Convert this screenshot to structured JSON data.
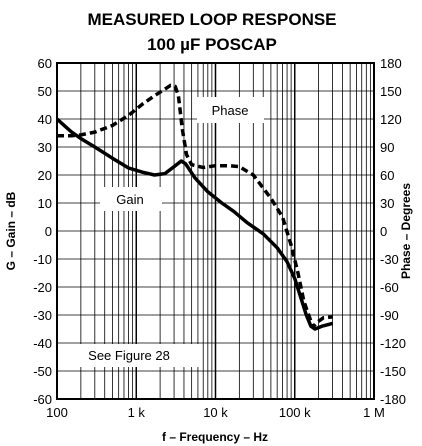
{
  "chart_data": {
    "type": "line",
    "title": "MEASURED LOOP RESPONSE",
    "subtitle": "100 µF POSCAP",
    "xlabel": "f – Frequency – Hz",
    "ylabel_left": "G – Gain – dB",
    "ylabel_right": "Phase – Degrees",
    "x_scale": "log",
    "xlim": [
      100,
      1000000
    ],
    "ylim_left": [
      -60,
      60
    ],
    "ylim_right": [
      -180,
      180
    ],
    "grid": true,
    "x_ticks": [
      {
        "value": 100,
        "label": "100"
      },
      {
        "value": 1000,
        "label": "1 k"
      },
      {
        "value": 10000,
        "label": "10 k"
      },
      {
        "value": 100000,
        "label": "100 k"
      },
      {
        "value": 1000000,
        "label": "1 M"
      }
    ],
    "y_ticks_left": [
      60,
      50,
      40,
      30,
      20,
      10,
      0,
      -10,
      -20,
      -30,
      -40,
      -50,
      -60
    ],
    "y_ticks_right": [
      180,
      150,
      120,
      90,
      60,
      30,
      0,
      -30,
      -60,
      -90,
      -120,
      -150,
      -180
    ],
    "series": [
      {
        "name": "Gain",
        "axis": "left",
        "style": "solid",
        "points": [
          [
            100,
            40
          ],
          [
            150,
            35.5
          ],
          [
            200,
            33
          ],
          [
            300,
            30
          ],
          [
            500,
            26
          ],
          [
            800,
            22.5
          ],
          [
            1200,
            21
          ],
          [
            1700,
            20
          ],
          [
            2300,
            20.5
          ],
          [
            3000,
            23
          ],
          [
            3700,
            25
          ],
          [
            4200,
            24
          ],
          [
            5500,
            19
          ],
          [
            8000,
            14
          ],
          [
            12000,
            10
          ],
          [
            17000,
            7
          ],
          [
            25000,
            3
          ],
          [
            40000,
            -1
          ],
          [
            60000,
            -6
          ],
          [
            80000,
            -11
          ],
          [
            100000,
            -17
          ],
          [
            120000,
            -24
          ],
          [
            140000,
            -30
          ],
          [
            160000,
            -34
          ],
          [
            180000,
            -35
          ],
          [
            220000,
            -34
          ],
          [
            300000,
            -33
          ]
        ]
      },
      {
        "name": "Phase",
        "axis": "right",
        "style": "dashed",
        "points": [
          [
            100,
            102
          ],
          [
            150,
            102
          ],
          [
            200,
            103
          ],
          [
            300,
            106
          ],
          [
            500,
            113
          ],
          [
            800,
            124
          ],
          [
            1200,
            136
          ],
          [
            1700,
            145
          ],
          [
            2200,
            151
          ],
          [
            2700,
            156
          ],
          [
            3100,
            155
          ],
          [
            3400,
            145
          ],
          [
            3800,
            110
          ],
          [
            4300,
            82
          ],
          [
            5000,
            71
          ],
          [
            7000,
            68
          ],
          [
            10000,
            70
          ],
          [
            15000,
            70
          ],
          [
            20000,
            69
          ],
          [
            30000,
            60
          ],
          [
            50000,
            35
          ],
          [
            70000,
            15
          ],
          [
            90000,
            -15
          ],
          [
            110000,
            -45
          ],
          [
            130000,
            -75
          ],
          [
            150000,
            -90
          ],
          [
            170000,
            -103
          ],
          [
            190000,
            -98
          ],
          [
            230000,
            -93
          ],
          [
            300000,
            -92
          ]
        ]
      }
    ],
    "annotations": [
      {
        "text": "Phase"
      },
      {
        "text": "Gain"
      },
      {
        "text": "See Figure 28"
      }
    ]
  }
}
